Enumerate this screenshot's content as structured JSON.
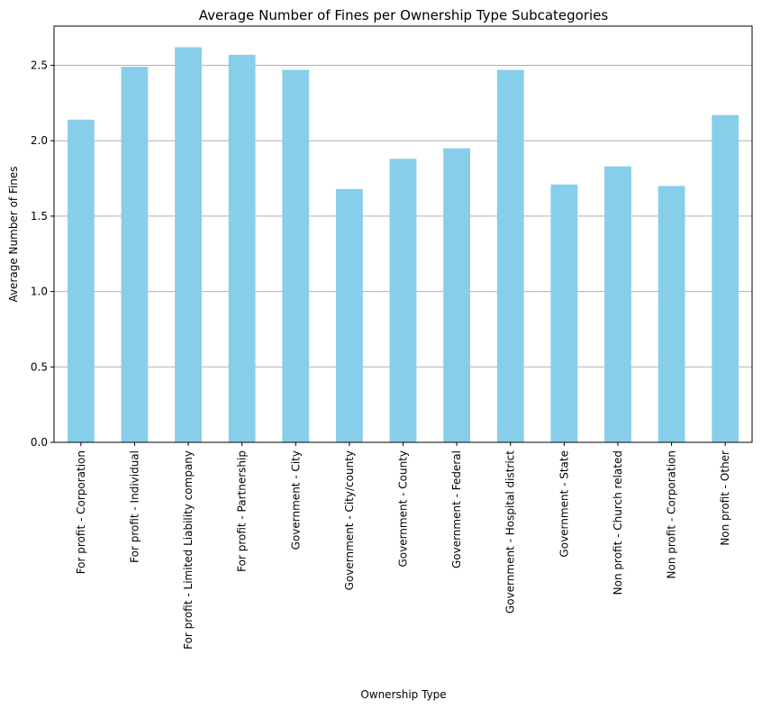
{
  "chart_data": {
    "type": "bar",
    "title": "Average Number of Fines per Ownership Type Subcategories",
    "xlabel": "Ownership Type",
    "ylabel": "Average Number of Fines",
    "categories": [
      "For profit - Corporation",
      "For profit - Individual",
      "For profit - Limited Liability company",
      "For profit - Partnership",
      "Government - City",
      "Government - City/county",
      "Government - County",
      "Government - Federal",
      "Government - Hospital district",
      "Government - State",
      "Non profit - Church related",
      "Non profit - Corporation",
      "Non profit - Other"
    ],
    "values": [
      2.14,
      2.49,
      2.62,
      2.57,
      2.47,
      1.68,
      1.88,
      1.95,
      2.47,
      1.71,
      1.83,
      1.7,
      2.17
    ],
    "ylim": [
      0,
      2.76
    ],
    "yticks": [
      "0.0",
      "0.5",
      "1.0",
      "1.5",
      "2.0",
      "2.5"
    ],
    "grid": "y",
    "colors": {
      "bar": "#87ceeb",
      "grid": "#b0b0b0",
      "axis": "#000000"
    }
  }
}
